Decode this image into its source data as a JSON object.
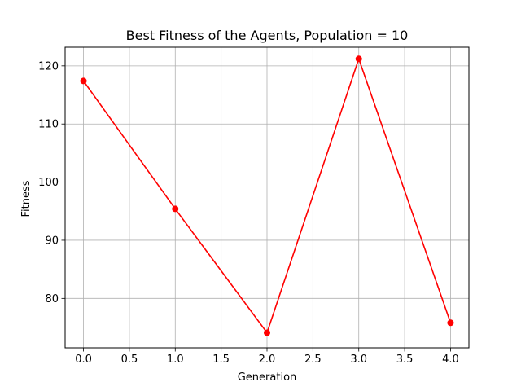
{
  "chart_data": {
    "type": "line",
    "title": "Best Fitness of the Agents, Population = 10",
    "xlabel": "Generation",
    "ylabel": "Fitness",
    "xlim": [
      -0.2,
      4.2
    ],
    "ylim": [
      71.5,
      123.2
    ],
    "xticks": [
      0.0,
      0.5,
      1.0,
      1.5,
      2.0,
      2.5,
      3.0,
      3.5,
      4.0
    ],
    "xtick_labels": [
      "0.0",
      "0.5",
      "1.0",
      "1.5",
      "2.0",
      "2.5",
      "3.0",
      "3.5",
      "4.0"
    ],
    "yticks": [
      80,
      90,
      100,
      110,
      120
    ],
    "ytick_labels": [
      "80",
      "90",
      "100",
      "110",
      "120"
    ],
    "grid": true,
    "series": [
      {
        "color": "#ff0000",
        "marker": "circle",
        "x": [
          0,
          1,
          2,
          3,
          4
        ],
        "y": [
          117.4,
          95.4,
          74.1,
          121.2,
          75.8
        ]
      }
    ]
  }
}
